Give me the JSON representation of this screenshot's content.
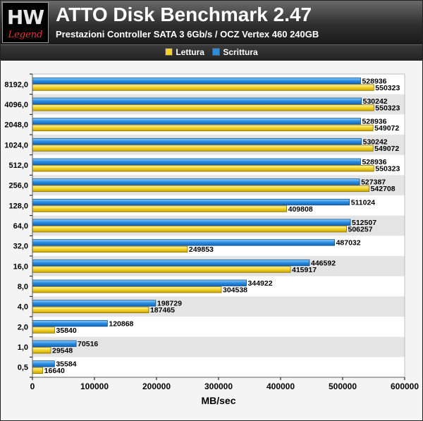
{
  "header": {
    "logo_mark": "HW",
    "logo_sub": "Legend",
    "title": "ATTO Disk Benchmark 2.47",
    "subtitle": "Prestazioni Controller SATA 3 6Gb/s / OCZ Vertex 460 240GB"
  },
  "colors": {
    "read": "#f2d32a",
    "write": "#2a8de0",
    "read_border": "#8a7200",
    "write_border": "#0d4f8a",
    "band": "#e4e4e4"
  },
  "chart_data": {
    "type": "bar",
    "orientation": "horizontal",
    "categories": [
      "8192,0",
      "4096,0",
      "2048,0",
      "1024,0",
      "512,0",
      "256,0",
      "128,0",
      "64,0",
      "32,0",
      "16,0",
      "8,0",
      "4,0",
      "2,0",
      "1,0",
      "0,5"
    ],
    "series": [
      {
        "name": "Scrittura",
        "values": [
          528936,
          530242,
          528936,
          530242,
          528936,
          527387,
          511024,
          512507,
          487032,
          446592,
          344922,
          198729,
          120868,
          70516,
          35584
        ]
      },
      {
        "name": "Lettura",
        "values": [
          550323,
          550323,
          549072,
          549072,
          550323,
          542708,
          409808,
          506257,
          249853,
          415917,
          304538,
          187465,
          35840,
          29548,
          16640
        ]
      }
    ],
    "legend": [
      "Lettura",
      "Scrittura"
    ],
    "legend_position": "top",
    "xlabel": "MB/sec",
    "xlim": [
      0,
      600000
    ],
    "xticks": [
      "0",
      "100000",
      "200000",
      "300000",
      "400000",
      "500000",
      "600000"
    ],
    "grid": "alternating-bands"
  }
}
